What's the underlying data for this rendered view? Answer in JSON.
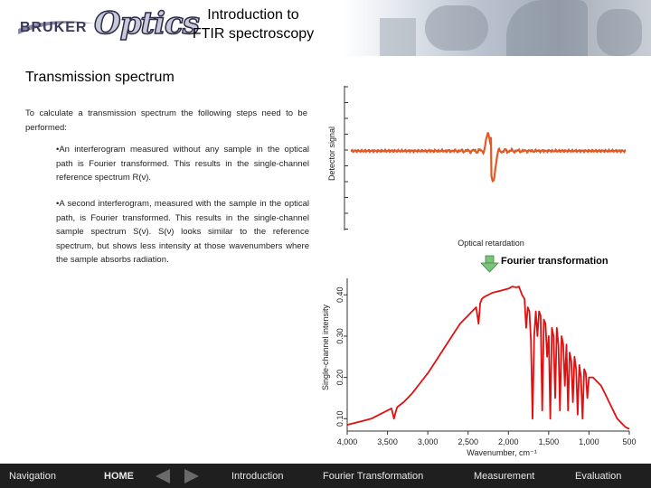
{
  "header": {
    "logo_brand": "BRUKER",
    "logo_product": "Optics",
    "title_line1": "Introduction to",
    "title_line2": "FTIR spectroscopy"
  },
  "section_title": "Transmission spectrum",
  "paragraphs": {
    "intro": "To calculate a transmission spectrum the following steps need to be performed:",
    "step1": "An interferogram measured without any sample in the optical path is Fourier transformed. This results in the single-channel reference spectrum R(ν).",
    "step2": "A second interferogram, measured with the sample in the optical path, is Fourier transformed. This results in the single-channel sample spectrum S(ν). S(ν) looks similar to the reference spectrum, but shows less intensity at those wavenumbers where the sample absorbs radiation."
  },
  "fourier_label": "Fourier transformation",
  "chart_data": [
    {
      "type": "line",
      "title": "",
      "ylabel": "Detector signal",
      "xlabel": "Optical retardation",
      "grid": false,
      "color": "#e05a28"
    },
    {
      "type": "line",
      "title": "",
      "ylabel": "Single-channel intensity",
      "xlabel": "Wavenumber, cm⁻¹",
      "xlim": [
        4000,
        500
      ],
      "ylim": [
        0.07,
        0.44
      ],
      "x_ticks": [
        4000,
        3500,
        3000,
        2500,
        2000,
        1500,
        1000,
        500
      ],
      "x_tick_labels": [
        "4,000",
        "3,500",
        "3,000",
        "2,500",
        "2,000",
        "1,500",
        "1,000",
        "500"
      ],
      "y_ticks": [
        0.1,
        0.2,
        0.3,
        0.4
      ],
      "y_tick_labels": [
        "0.10",
        "0.20",
        "0.30",
        "0.40"
      ],
      "color": "#e01010",
      "series": [
        {
          "x": [
            4000,
            3900,
            3800,
            3700,
            3600,
            3500,
            3450,
            3420,
            3400,
            3380,
            3300,
            3200,
            3100,
            3000,
            2900,
            2800,
            2700,
            2600,
            2500,
            2400,
            2370,
            2350,
            2330,
            2300,
            2200,
            2100,
            2000,
            1950,
            1900,
            1870,
            1850,
            1830,
            1800,
            1780,
            1760,
            1740,
            1720,
            1700,
            1680,
            1660,
            1640,
            1620,
            1600,
            1580,
            1560,
            1540,
            1520,
            1500,
            1480,
            1460,
            1440,
            1420,
            1400,
            1380,
            1360,
            1340,
            1320,
            1300,
            1280,
            1260,
            1240,
            1220,
            1200,
            1180,
            1160,
            1140,
            1120,
            1100,
            1080,
            1060,
            1040,
            1020,
            1000,
            950,
            900,
            850,
            800,
            750,
            700,
            650,
            600,
            550,
            500
          ],
          "y": [
            0.085,
            0.09,
            0.095,
            0.1,
            0.11,
            0.12,
            0.125,
            0.1,
            0.115,
            0.128,
            0.14,
            0.16,
            0.185,
            0.21,
            0.24,
            0.27,
            0.3,
            0.33,
            0.35,
            0.37,
            0.33,
            0.38,
            0.39,
            0.395,
            0.405,
            0.41,
            0.415,
            0.42,
            0.418,
            0.42,
            0.41,
            0.4,
            0.39,
            0.32,
            0.37,
            0.36,
            0.29,
            0.1,
            0.3,
            0.36,
            0.3,
            0.36,
            0.35,
            0.12,
            0.34,
            0.33,
            0.25,
            0.3,
            0.1,
            0.32,
            0.3,
            0.15,
            0.32,
            0.28,
            0.12,
            0.3,
            0.28,
            0.18,
            0.28,
            0.12,
            0.26,
            0.24,
            0.14,
            0.25,
            0.22,
            0.11,
            0.23,
            0.2,
            0.1,
            0.22,
            0.21,
            0.15,
            0.2,
            0.2,
            0.19,
            0.18,
            0.16,
            0.14,
            0.12,
            0.1,
            0.09,
            0.08,
            0.075
          ]
        }
      ]
    }
  ],
  "nav": {
    "navigation": "Navigation",
    "home": "HOME",
    "introduction": "Introduction",
    "fourier": "Fourier Transformation",
    "measurement": "Measurement",
    "evaluation": "Evaluation"
  }
}
